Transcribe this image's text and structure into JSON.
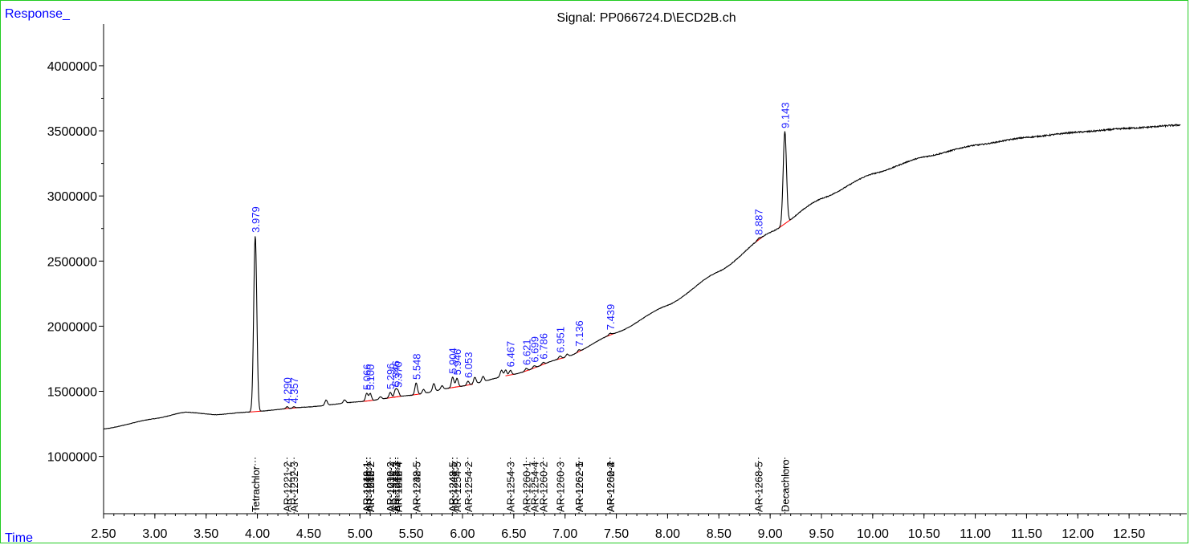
{
  "colors": {
    "frame": "#22cc22",
    "trace": "#000000",
    "baseline": "#ff0000",
    "peak_label": "#1a1aff",
    "axis_title": "#0000ff"
  },
  "chart_data": {
    "type": "line",
    "title": "Signal: PP066724.D\\ECD2B.ch",
    "ylabel": "Response_",
    "xlabel": "Time",
    "xlim": [
      2.5,
      13.0
    ],
    "ylim": [
      560000,
      4320000
    ],
    "xticks": [
      "2.50",
      "3.00",
      "3.50",
      "4.00",
      "4.50",
      "5.00",
      "5.50",
      "6.00",
      "6.50",
      "7.00",
      "7.50",
      "8.00",
      "8.50",
      "9.00",
      "9.50",
      "10.00",
      "10.50",
      "11.00",
      "11.50",
      "12.00",
      "12.50"
    ],
    "yticks": [
      "1000000",
      "1500000",
      "2000000",
      "2500000",
      "3000000",
      "3500000",
      "4000000"
    ],
    "baseline_points": [
      [
        2.5,
        1210000
      ],
      [
        3.0,
        1290000
      ],
      [
        3.3,
        1340000
      ],
      [
        3.6,
        1320000
      ],
      [
        3.9,
        1340000
      ],
      [
        4.5,
        1380000
      ],
      [
        5.0,
        1420000
      ],
      [
        5.5,
        1470000
      ],
      [
        6.0,
        1540000
      ],
      [
        6.5,
        1630000
      ],
      [
        7.0,
        1760000
      ],
      [
        7.5,
        1950000
      ],
      [
        8.0,
        2160000
      ],
      [
        8.5,
        2420000
      ],
      [
        9.0,
        2720000
      ],
      [
        9.5,
        2980000
      ],
      [
        10.0,
        3170000
      ],
      [
        10.5,
        3300000
      ],
      [
        11.0,
        3390000
      ],
      [
        11.5,
        3450000
      ],
      [
        12.0,
        3490000
      ],
      [
        12.5,
        3520000
      ],
      [
        13.0,
        3545000
      ]
    ],
    "peaks": [
      {
        "rt": "3.979",
        "x": 3.979,
        "height": 1350000,
        "width": 0.015
      },
      {
        "rt": "4.290",
        "x": 4.29,
        "height": 15000,
        "width": 0.01
      },
      {
        "rt": "4.357",
        "x": 4.357,
        "height": 10000,
        "width": 0.01
      },
      {
        "rt": "5.066",
        "x": 5.066,
        "height": 60000,
        "width": 0.012
      },
      {
        "rt": "5.100",
        "x": 5.1,
        "height": 55000,
        "width": 0.012
      },
      {
        "rt": "5.296",
        "x": 5.296,
        "height": 40000,
        "width": 0.012
      },
      {
        "rt": "5.346",
        "x": 5.346,
        "height": 55000,
        "width": 0.012
      },
      {
        "rt": "5.370",
        "x": 5.37,
        "height": 45000,
        "width": 0.012
      },
      {
        "rt": "5.548",
        "x": 5.548,
        "height": 90000,
        "width": 0.012
      },
      {
        "rt": "5.904",
        "x": 5.904,
        "height": 80000,
        "width": 0.012
      },
      {
        "rt": "5.946",
        "x": 5.946,
        "height": 65000,
        "width": 0.012
      },
      {
        "rt": "6.053",
        "x": 6.053,
        "height": 30000,
        "width": 0.012
      },
      {
        "rt": "6.467",
        "x": 6.467,
        "height": 35000,
        "width": 0.012
      },
      {
        "rt": "6.621",
        "x": 6.621,
        "height": 20000,
        "width": 0.012
      },
      {
        "rt": "6.699",
        "x": 6.699,
        "height": 18000,
        "width": 0.012
      },
      {
        "rt": "6.786",
        "x": 6.786,
        "height": 15000,
        "width": 0.012
      },
      {
        "rt": "6.951",
        "x": 6.951,
        "height": 20000,
        "width": 0.012
      },
      {
        "rt": "7.136",
        "x": 7.136,
        "height": 15000,
        "width": 0.012
      },
      {
        "rt": "7.439",
        "x": 7.439,
        "height": 12000,
        "width": 0.012
      },
      {
        "rt": "8.887",
        "x": 8.887,
        "height": 10000,
        "width": 0.012
      },
      {
        "rt": "9.143",
        "x": 9.143,
        "height": 710000,
        "width": 0.016
      }
    ],
    "minor_peaks": [
      [
        4.67,
        40000
      ],
      [
        4.85,
        25000
      ],
      [
        5.2,
        20000
      ],
      [
        5.62,
        30000
      ],
      [
        5.72,
        60000
      ],
      [
        5.8,
        30000
      ],
      [
        6.12,
        50000
      ],
      [
        6.2,
        40000
      ],
      [
        6.38,
        50000
      ],
      [
        6.42,
        45000
      ],
      [
        7.02,
        20000
      ]
    ],
    "compounds": [
      {
        "name": "Tetrachlor",
        "x": 3.979
      },
      {
        "name": "AR-1221-2",
        "x": 4.29
      },
      {
        "name": "AR-1232-3",
        "x": 4.357
      },
      {
        "name": "AR-1016-1",
        "x": 5.066
      },
      {
        "name": "AR-1242-1",
        "x": 5.066
      },
      {
        "name": "AR-1248-1",
        "x": 5.066
      },
      {
        "name": "AR-1248-2",
        "x": 5.1
      },
      {
        "name": "AR-1016-2",
        "x": 5.1
      },
      {
        "name": "AR-1242-2",
        "x": 5.1
      },
      {
        "name": "AR-1016-3",
        "x": 5.296
      },
      {
        "name": "AR-1232-2",
        "x": 5.296
      },
      {
        "name": "AR-1242-3",
        "x": 5.346
      },
      {
        "name": "AR-1248-3",
        "x": 5.346
      },
      {
        "name": "AR-1016-4",
        "x": 5.37
      },
      {
        "name": "AR-1242-4",
        "x": 5.37
      },
      {
        "name": "AR-1232-5",
        "x": 5.548
      },
      {
        "name": "AR-1248-5",
        "x": 5.548
      },
      {
        "name": "AR-1242-5",
        "x": 5.904
      },
      {
        "name": "AR-1248-5",
        "x": 5.904
      },
      {
        "name": "AR-1254-5",
        "x": 5.946
      },
      {
        "name": "AR-1254-2",
        "x": 6.053
      },
      {
        "name": "AR-1254-3",
        "x": 6.467
      },
      {
        "name": "AR-1260-1",
        "x": 6.621
      },
      {
        "name": "AR-1254-4",
        "x": 6.699
      },
      {
        "name": "AR-1260-2",
        "x": 6.786
      },
      {
        "name": "AR-1260-3",
        "x": 6.951
      },
      {
        "name": "AR-1262-5",
        "x": 7.136
      },
      {
        "name": "AR-1262-1",
        "x": 7.136
      },
      {
        "name": "AR-1260-4",
        "x": 7.439
      },
      {
        "name": "AR-1262-2",
        "x": 7.439
      },
      {
        "name": "AR-1268-5",
        "x": 8.887
      },
      {
        "name": "Decachloro",
        "x": 9.143
      }
    ]
  }
}
